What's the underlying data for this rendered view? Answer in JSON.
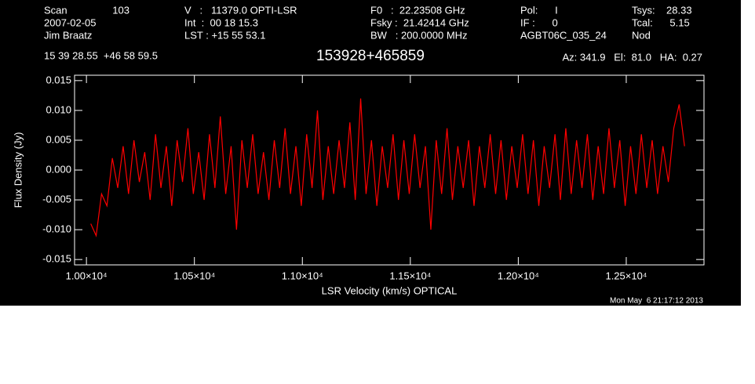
{
  "chart_data": {
    "type": "line",
    "header": [
      [
        "Scan",
        "103",
        "2007-02-05",
        "Jim Braatz"
      ],
      [
        "V   :   11379.0 OPTI-LSR",
        "Int  :  00 18 15.3",
        "LST : +15 55 53.1"
      ],
      [
        "F0   :  22.23508 GHz",
        "Fsky :  21.42414 GHz",
        "BW   : 200.0000 MHz"
      ],
      [
        "Pol:      I",
        "IF :      0",
        "AGBT06C_035_24"
      ],
      [
        "Tsys:    28.33",
        "Tcal:      5.15",
        "Nod"
      ]
    ],
    "position": "15 39 28.55  +46 58 59.5",
    "title": "153928+465859",
    "pointing": "Az: 341.9   El:  81.0   HA:  0.27",
    "timestamp": "Mon May  6 21:17:12 2013",
    "xlabel": "LSR Velocity (km/s) OPTICAL",
    "ylabel": "Flux Density (Jy)",
    "x": [
      10020,
      10045,
      10070,
      10095,
      10120,
      10145,
      10170,
      10195,
      10220,
      10245,
      10270,
      10295,
      10320,
      10345,
      10370,
      10395,
      10420,
      10445,
      10470,
      10495,
      10520,
      10545,
      10570,
      10595,
      10620,
      10645,
      10670,
      10695,
      10720,
      10745,
      10770,
      10795,
      10820,
      10845,
      10870,
      10895,
      10920,
      10945,
      10970,
      10995,
      11020,
      11045,
      11070,
      11095,
      11120,
      11145,
      11170,
      11195,
      11220,
      11245,
      11270,
      11295,
      11320,
      11345,
      11370,
      11395,
      11420,
      11445,
      11470,
      11495,
      11520,
      11545,
      11570,
      11595,
      11620,
      11645,
      11670,
      11695,
      11720,
      11745,
      11770,
      11795,
      11820,
      11845,
      11870,
      11895,
      11920,
      11945,
      11970,
      11995,
      12020,
      12045,
      12070,
      12095,
      12120,
      12145,
      12170,
      12195,
      12220,
      12245,
      12270,
      12295,
      12320,
      12345,
      12370,
      12395,
      12420,
      12445,
      12470,
      12495,
      12520,
      12545,
      12570,
      12595,
      12620,
      12645,
      12670,
      12695,
      12720,
      12745,
      12770
    ],
    "series": [
      {
        "color": "#ff0000",
        "values": [
          -0.009,
          -0.011,
          -0.004,
          -0.006,
          0.002,
          -0.003,
          0.004,
          -0.004,
          0.005,
          -0.002,
          0.003,
          -0.005,
          0.006,
          -0.003,
          0.004,
          -0.006,
          0.005,
          -0.002,
          0.007,
          -0.004,
          0.003,
          -0.005,
          0.006,
          -0.003,
          0.009,
          -0.004,
          0.004,
          -0.01,
          0.005,
          -0.003,
          0.006,
          -0.004,
          0.003,
          -0.005,
          0.005,
          -0.003,
          0.007,
          -0.004,
          0.004,
          -0.006,
          0.006,
          -0.003,
          0.01,
          -0.005,
          0.004,
          -0.004,
          0.005,
          -0.003,
          0.008,
          -0.005,
          0.012,
          -0.004,
          0.005,
          -0.006,
          0.004,
          -0.003,
          0.006,
          -0.005,
          0.005,
          -0.004,
          0.006,
          -0.003,
          0.004,
          -0.01,
          0.005,
          -0.004,
          0.007,
          -0.005,
          0.004,
          -0.003,
          0.005,
          -0.006,
          0.004,
          -0.003,
          0.006,
          -0.004,
          0.005,
          -0.005,
          0.004,
          -0.003,
          0.006,
          -0.004,
          0.005,
          -0.006,
          0.004,
          -0.003,
          0.006,
          -0.005,
          0.007,
          -0.004,
          0.005,
          -0.003,
          0.006,
          -0.005,
          0.004,
          -0.004,
          0.007,
          -0.003,
          0.005,
          -0.006,
          0.004,
          -0.004,
          0.006,
          -0.003,
          0.005,
          -0.004,
          0.004,
          -0.002,
          0.007,
          0.011,
          0.004
        ]
      }
    ],
    "xlim": [
      9945,
      12860
    ],
    "ylim": [
      -0.0159,
      0.0159
    ],
    "xticks": [
      {
        "value": 10000,
        "label": "1.00×10⁴"
      },
      {
        "value": 10500,
        "label": "1.05×10⁴"
      },
      {
        "value": 11000,
        "label": "1.10×10⁴"
      },
      {
        "value": 11500,
        "label": "1.15×10⁴"
      },
      {
        "value": 12000,
        "label": "1.20×10⁴"
      },
      {
        "value": 12500,
        "label": "1.25×10⁴"
      }
    ],
    "yticks": [
      0.015,
      {
        "value": 0.01,
        "label": "0.010"
      },
      0.005,
      {
        "value": 0,
        "label": "0.000"
      },
      -0.005,
      {
        "value": -0.01,
        "label": "-0.010"
      },
      -0.015
    ]
  }
}
